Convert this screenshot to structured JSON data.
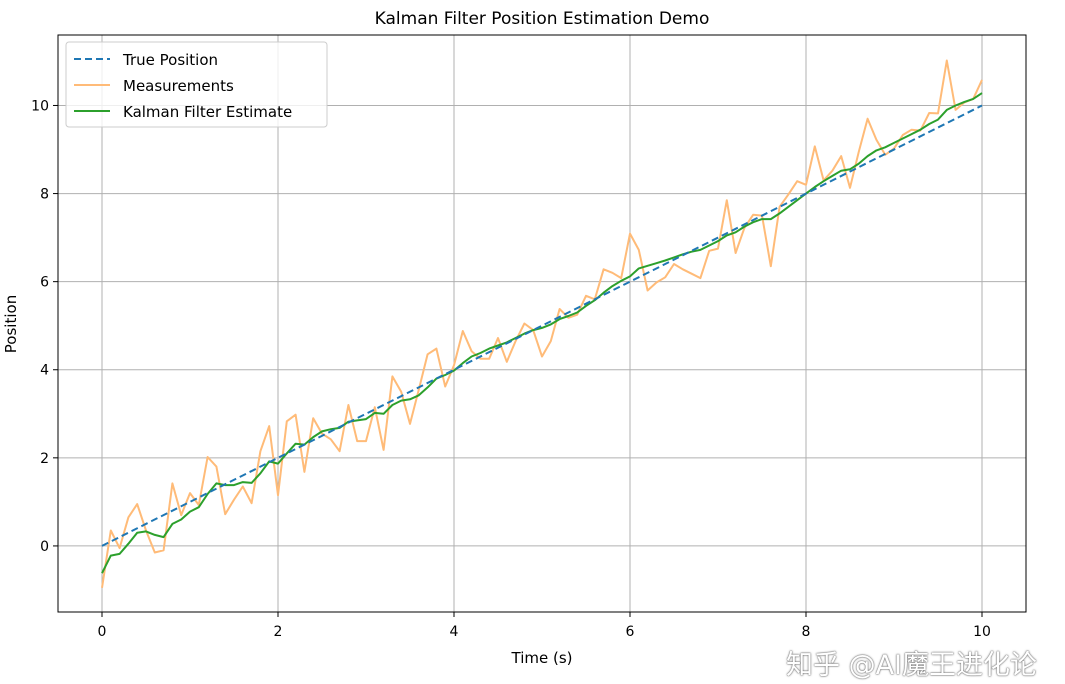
{
  "chart_data": {
    "type": "line",
    "title": "Kalman Filter Position Estimation Demo",
    "xlabel": "Time (s)",
    "ylabel": "Position",
    "xlim": [
      -0.5,
      10.5
    ],
    "ylim": [
      -1.5,
      11.6
    ],
    "xticks": [
      0,
      2,
      4,
      6,
      8,
      10
    ],
    "yticks": [
      0,
      2,
      4,
      6,
      8,
      10
    ],
    "grid": true,
    "legend_placement": "top-left",
    "x": [
      0,
      0.1,
      0.2,
      0.3,
      0.4,
      0.5,
      0.6,
      0.7,
      0.8,
      0.9,
      1,
      1.1,
      1.2,
      1.3,
      1.4,
      1.5,
      1.6,
      1.7,
      1.8,
      1.9,
      2,
      2.1,
      2.2,
      2.3,
      2.4,
      2.5,
      2.6,
      2.7,
      2.8,
      2.9,
      3,
      3.1,
      3.2,
      3.3,
      3.4,
      3.5,
      3.6,
      3.7,
      3.8,
      3.9,
      4,
      4.1,
      4.2,
      4.3,
      4.4,
      4.5,
      4.6,
      4.7,
      4.8,
      4.9,
      5,
      5.1,
      5.2,
      5.3,
      5.4,
      5.5,
      5.6,
      5.7,
      5.8,
      5.9,
      6,
      6.1,
      6.2,
      6.3,
      6.4,
      6.5,
      6.6,
      6.7,
      6.8,
      6.9,
      7,
      7.1,
      7.2,
      7.3,
      7.4,
      7.5,
      7.6,
      7.7,
      7.8,
      7.9,
      8,
      8.1,
      8.2,
      8.3,
      8.4,
      8.5,
      8.6,
      8.7,
      8.8,
      8.9,
      9,
      9.1,
      9.2,
      9.3,
      9.4,
      9.5,
      9.6,
      9.7,
      9.8,
      9.9,
      10
    ],
    "series": [
      {
        "name": "True Position",
        "color": "#1f77b4",
        "style": "dashed",
        "values": [
          0,
          10
        ],
        "x": [
          0,
          10
        ]
      },
      {
        "name": "Measurements",
        "color": "#ffbb78",
        "style": "solid",
        "values": [
          -0.95,
          0.35,
          -0.05,
          0.65,
          0.95,
          0.35,
          -0.15,
          -0.1,
          1.42,
          0.7,
          1.2,
          0.93,
          2.02,
          1.8,
          0.72,
          1.05,
          1.35,
          0.97,
          2.15,
          2.72,
          1.15,
          2.83,
          2.98,
          1.68,
          2.9,
          2.55,
          2.42,
          2.15,
          3.2,
          2.38,
          2.38,
          3.15,
          2.18,
          3.85,
          3.5,
          2.77,
          3.55,
          4.35,
          4.48,
          3.62,
          4.1,
          4.88,
          4.42,
          4.25,
          4.25,
          4.72,
          4.18,
          4.65,
          5.05,
          4.9,
          4.3,
          4.65,
          5.38,
          5.18,
          5.25,
          5.68,
          5.6,
          6.28,
          6.2,
          6.08,
          7.09,
          6.72,
          5.8,
          5.98,
          6.1,
          6.4,
          6.28,
          6.18,
          6.08,
          6.7,
          6.75,
          7.85,
          6.65,
          7.22,
          7.52,
          7.5,
          6.35,
          7.7,
          7.98,
          8.28,
          8.2,
          9.07,
          8.3,
          8.52,
          8.85,
          8.13,
          8.95,
          9.7,
          9.22,
          8.88,
          9.02,
          9.33,
          9.45,
          9.43,
          9.83,
          9.82,
          11.02,
          9.9,
          10.07,
          10.15,
          10.58
        ]
      },
      {
        "name": "Kalman Filter Estimate",
        "color": "#2ca02c",
        "style": "solid",
        "values": [
          -0.62,
          -0.22,
          -0.18,
          0.05,
          0.3,
          0.33,
          0.25,
          0.2,
          0.5,
          0.6,
          0.78,
          0.88,
          1.18,
          1.42,
          1.38,
          1.38,
          1.45,
          1.43,
          1.65,
          1.92,
          1.87,
          2.1,
          2.32,
          2.3,
          2.47,
          2.6,
          2.65,
          2.68,
          2.82,
          2.85,
          2.88,
          3.02,
          3.0,
          3.2,
          3.3,
          3.33,
          3.42,
          3.6,
          3.8,
          3.88,
          3.98,
          4.15,
          4.3,
          4.38,
          4.48,
          4.55,
          4.62,
          4.72,
          4.82,
          4.9,
          4.95,
          5.03,
          5.15,
          5.22,
          5.3,
          5.45,
          5.58,
          5.75,
          5.9,
          6.02,
          6.12,
          6.3,
          6.36,
          6.42,
          6.48,
          6.55,
          6.62,
          6.68,
          6.72,
          6.82,
          6.92,
          7.05,
          7.12,
          7.25,
          7.35,
          7.42,
          7.42,
          7.55,
          7.7,
          7.85,
          8.0,
          8.15,
          8.28,
          8.4,
          8.52,
          8.55,
          8.68,
          8.85,
          8.98,
          9.05,
          9.15,
          9.25,
          9.35,
          9.45,
          9.58,
          9.68,
          9.9,
          10.0,
          10.08,
          10.15,
          10.28
        ]
      }
    ]
  },
  "watermark": "知乎 @AI魔王进化论"
}
